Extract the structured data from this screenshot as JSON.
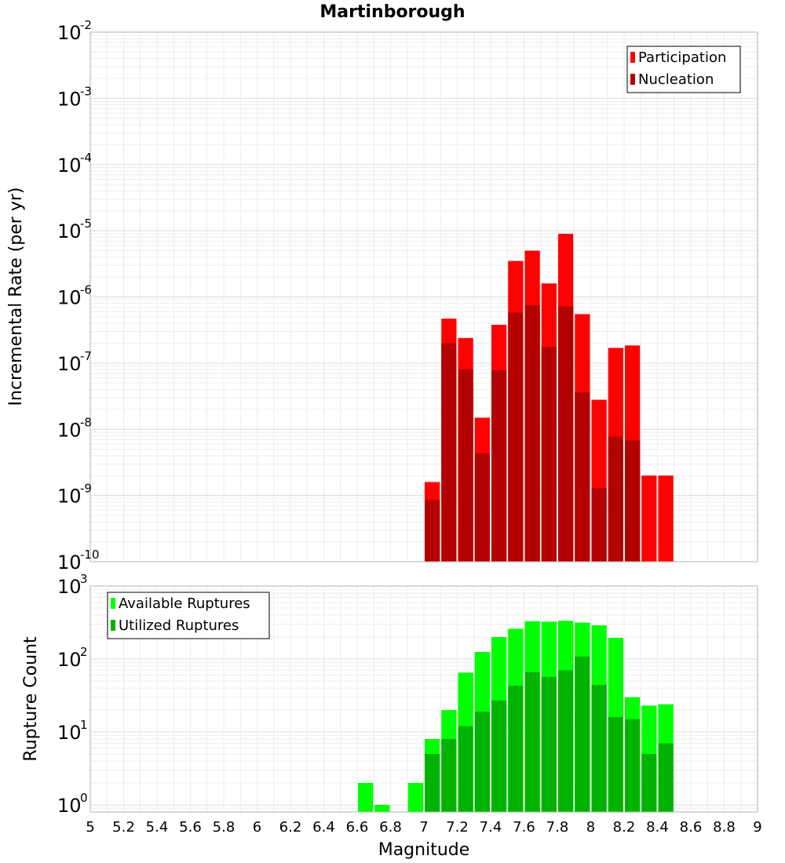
{
  "chart_data": [
    {
      "type": "bar",
      "title": "Martinborough",
      "xlabel": "",
      "ylabel": "Incremental Rate (per yr)",
      "yscale": "log",
      "ylim": [
        1e-10,
        0.01
      ],
      "xlim": [
        5,
        9
      ],
      "bin_width": 0.1,
      "grid": true,
      "legend_position": "top-right",
      "x": [
        7.0,
        7.1,
        7.2,
        7.3,
        7.4,
        7.5,
        7.6,
        7.7,
        7.8,
        7.9,
        8.0,
        8.1,
        8.2,
        8.3,
        8.4
      ],
      "series": [
        {
          "name": "Participation",
          "color": "#ff0000",
          "values": [
            1.6e-09,
            4.7e-07,
            2.4e-07,
            1.5e-08,
            3.8e-07,
            3.5e-06,
            5e-06,
            1.6e-06,
            9e-06,
            5.5e-07,
            2.8e-08,
            1.7e-07,
            1.85e-07,
            2e-09,
            2e-09
          ]
        },
        {
          "name": "Nucleation",
          "color": "#b30000",
          "values": [
            8.5e-10,
            2e-07,
            8e-08,
            4.3e-09,
            7.8e-08,
            5.8e-07,
            7.5e-07,
            1.75e-07,
            7.2e-07,
            3.6e-08,
            1.3e-09,
            7.8e-09,
            6.8e-09,
            null,
            null
          ]
        }
      ],
      "ytick_labels": [
        {
          "base": "10",
          "exp": "-2"
        },
        {
          "base": "10",
          "exp": "-3"
        },
        {
          "base": "10",
          "exp": "-4"
        },
        {
          "base": "10",
          "exp": "-5"
        },
        {
          "base": "10",
          "exp": "-6"
        },
        {
          "base": "10",
          "exp": "-7"
        },
        {
          "base": "10",
          "exp": "-8"
        },
        {
          "base": "10",
          "exp": "-9"
        },
        {
          "base": "10",
          "exp": "-10"
        }
      ]
    },
    {
      "type": "bar",
      "title": "",
      "xlabel": "Magnitude",
      "ylabel": "Rupture Count",
      "yscale": "log",
      "ylim": [
        0.8,
        1000
      ],
      "xlim": [
        5,
        9
      ],
      "bin_width": 0.1,
      "grid": true,
      "legend_position": "top-left",
      "x": [
        6.6,
        6.7,
        6.8,
        6.9,
        7.0,
        7.1,
        7.2,
        7.3,
        7.4,
        7.5,
        7.6,
        7.7,
        7.8,
        7.9,
        8.0,
        8.1,
        8.2,
        8.3,
        8.4
      ],
      "series": [
        {
          "name": "Available Ruptures",
          "color": "#00ff00",
          "values": [
            2,
            1,
            null,
            2,
            8,
            20,
            65,
            125,
            200,
            260,
            330,
            325,
            335,
            315,
            290,
            195,
            30,
            23,
            24
          ]
        },
        {
          "name": "Utilized Ruptures",
          "color": "#00b300",
          "values": [
            null,
            null,
            null,
            null,
            5,
            8,
            12,
            19,
            27,
            43,
            66,
            57,
            70,
            108,
            44,
            16,
            15,
            5,
            7
          ]
        }
      ],
      "xtick_labels": [
        "5",
        "5.2",
        "5.4",
        "5.6",
        "5.8",
        "6",
        "6.2",
        "6.4",
        "6.6",
        "6.8",
        "7",
        "7.2",
        "7.4",
        "7.6",
        "7.8",
        "8",
        "8.2",
        "8.4",
        "8.6",
        "8.8",
        "9"
      ],
      "ytick_labels": [
        {
          "base": "10",
          "exp": "3"
        },
        {
          "base": "10",
          "exp": "2"
        },
        {
          "base": "10",
          "exp": "1"
        },
        {
          "base": "10",
          "exp": "0"
        }
      ]
    }
  ]
}
